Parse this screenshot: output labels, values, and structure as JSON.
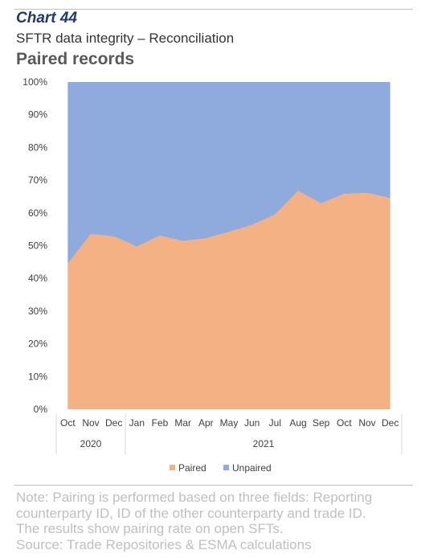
{
  "header": {
    "chart_number": "Chart 44",
    "subtitle": "SFTR data integrity – Reconciliation",
    "title": "Paired records"
  },
  "notes": [
    "Note: Pairing is performed based on three fields: Reporting",
    "counterparty ID, ID of the other counterparty and trade ID.",
    "The results show pairing rate on open SFTs.",
    "Source: Trade Repositories & ESMA calculations"
  ],
  "colors": {
    "paired": "#f4b183",
    "unpaired": "#8faadc"
  },
  "chart_data": {
    "type": "area",
    "stacked": "percent",
    "categories": [
      "Oct",
      "Nov",
      "Dec",
      "Jan",
      "Feb",
      "Mar",
      "Apr",
      "May",
      "Jun",
      "Jul",
      "Aug",
      "Sep",
      "Oct",
      "Nov",
      "Dec"
    ],
    "year_groups": [
      {
        "label": "2020",
        "count": 3
      },
      {
        "label": "2021",
        "count": 12
      }
    ],
    "series": [
      {
        "name": "Paired",
        "values": [
          44.5,
          53.5,
          52.8,
          49.7,
          53,
          51.4,
          52.2,
          54.2,
          56.3,
          59.5,
          66.7,
          62.9,
          65.8,
          66.1,
          64.5
        ]
      },
      {
        "name": "Unpaired",
        "values": [
          55.5,
          46.5,
          47.2,
          50.3,
          47,
          48.6,
          47.8,
          45.8,
          43.7,
          40.5,
          33.3,
          37.1,
          34.2,
          33.9,
          35.5
        ]
      }
    ],
    "ylim": [
      0,
      100
    ],
    "yticks": [
      "0%",
      "10%",
      "20%",
      "30%",
      "40%",
      "50%",
      "60%",
      "70%",
      "80%",
      "90%",
      "100%"
    ],
    "legend": "bottom",
    "grid": false
  }
}
